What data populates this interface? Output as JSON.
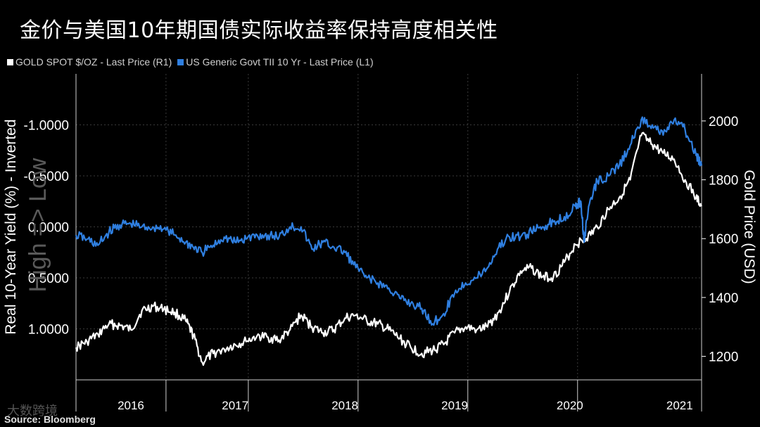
{
  "title": "金价与美国10年期国债实际收益率保持高度相关性",
  "legend": [
    {
      "label": "GOLD SPOT $/OZ - Last Price (R1)",
      "color": "#ffffff"
    },
    {
      "label": "US Generic Govt TII 10 Yr - Last Price (L1)",
      "color": "#2f7fe0"
    }
  ],
  "source": "Source: Bloomberg",
  "watermark": "大数跨境",
  "chart_data": {
    "type": "line",
    "left_axis": {
      "label": "Real 10-Year Yield (%) - Inverted",
      "inverted": true,
      "range": [
        1.5,
        -1.5
      ],
      "ticks": [
        -1.0,
        -0.5,
        0.0,
        0.5,
        1.0
      ],
      "tick_labels": [
        "-1.0000",
        "-0.5000",
        "0.0000",
        "0.5000",
        "1.0000"
      ],
      "annotation": "High => Low"
    },
    "right_axis": {
      "label": "Gold Price (USD)",
      "range": [
        1120,
        2160
      ],
      "ticks": [
        1200,
        1400,
        1600,
        1800,
        2000
      ],
      "tick_labels": [
        "1200",
        "1400",
        "1600",
        "1800",
        "2000"
      ]
    },
    "x_axis": {
      "range": [
        2015.55,
        2021.25
      ],
      "year_labels": [
        "2016",
        "2017",
        "2018",
        "2019",
        "2020",
        "2021"
      ],
      "year_label_positions": [
        2016.05,
        2017.0,
        2018.0,
        2019.0,
        2020.05,
        2021.05
      ],
      "boundaries": [
        2016.37,
        2017.12,
        2018.12,
        2019.12,
        2020.12
      ]
    },
    "series": [
      {
        "name": "GOLD SPOT $/OZ - Last Price (R1)",
        "axis": "right",
        "color": "#ffffff",
        "x": [
          2015.55,
          2015.65,
          2015.75,
          2015.85,
          2015.95,
          2016.05,
          2016.15,
          2016.25,
          2016.35,
          2016.45,
          2016.55,
          2016.62,
          2016.7,
          2016.8,
          2016.9,
          2017.0,
          2017.1,
          2017.2,
          2017.3,
          2017.4,
          2017.5,
          2017.6,
          2017.7,
          2017.8,
          2017.9,
          2018.0,
          2018.1,
          2018.2,
          2018.3,
          2018.4,
          2018.5,
          2018.6,
          2018.7,
          2018.8,
          2018.9,
          2019.0,
          2019.1,
          2019.2,
          2019.3,
          2019.4,
          2019.5,
          2019.6,
          2019.7,
          2019.8,
          2019.9,
          2020.0,
          2020.1,
          2020.2,
          2020.3,
          2020.4,
          2020.5,
          2020.6,
          2020.7,
          2020.8,
          2020.9,
          2021.0,
          2021.1,
          2021.2,
          2021.25
        ],
        "values": [
          1230,
          1250,
          1275,
          1310,
          1305,
          1290,
          1355,
          1370,
          1360,
          1350,
          1320,
          1270,
          1180,
          1210,
          1225,
          1240,
          1250,
          1270,
          1265,
          1255,
          1290,
          1340,
          1300,
          1280,
          1290,
          1330,
          1340,
          1320,
          1310,
          1290,
          1260,
          1230,
          1210,
          1220,
          1240,
          1280,
          1300,
          1290,
          1300,
          1350,
          1420,
          1490,
          1500,
          1470,
          1470,
          1520,
          1580,
          1600,
          1640,
          1700,
          1740,
          1800,
          1950,
          1920,
          1890,
          1870,
          1800,
          1740,
          1710
        ]
      },
      {
        "name": "US Generic Govt TII 10 Yr - Last Price (L1)",
        "axis": "left",
        "color": "#2f7fe0",
        "x": [
          2015.55,
          2015.65,
          2015.75,
          2015.85,
          2015.95,
          2016.05,
          2016.15,
          2016.25,
          2016.35,
          2016.45,
          2016.55,
          2016.62,
          2016.7,
          2016.8,
          2016.9,
          2017.0,
          2017.1,
          2017.2,
          2017.3,
          2017.4,
          2017.5,
          2017.6,
          2017.7,
          2017.8,
          2017.9,
          2018.0,
          2018.1,
          2018.2,
          2018.3,
          2018.4,
          2018.5,
          2018.6,
          2018.7,
          2018.8,
          2018.9,
          2019.0,
          2019.1,
          2019.2,
          2019.3,
          2019.4,
          2019.5,
          2019.6,
          2019.7,
          2019.8,
          2019.9,
          2020.0,
          2020.1,
          2020.15,
          2020.18,
          2020.22,
          2020.3,
          2020.4,
          2020.5,
          2020.6,
          2020.7,
          2020.8,
          2020.9,
          2021.0,
          2021.1,
          2021.2,
          2021.25
        ],
        "values": [
          0.08,
          0.12,
          0.18,
          0.05,
          -0.02,
          -0.03,
          0.0,
          0.0,
          0.02,
          0.08,
          0.15,
          0.2,
          0.25,
          0.18,
          0.1,
          0.15,
          0.12,
          0.08,
          0.08,
          0.1,
          0.0,
          0.0,
          0.22,
          0.15,
          0.2,
          0.25,
          0.4,
          0.5,
          0.55,
          0.6,
          0.7,
          0.75,
          0.8,
          0.95,
          0.85,
          0.65,
          0.55,
          0.5,
          0.4,
          0.2,
          0.1,
          0.1,
          0.05,
          0.0,
          -0.05,
          -0.1,
          -0.2,
          -0.25,
          0.15,
          -0.2,
          -0.45,
          -0.5,
          -0.6,
          -0.8,
          -1.05,
          -1.0,
          -0.9,
          -1.05,
          -0.95,
          -0.7,
          -0.6
        ]
      }
    ]
  }
}
